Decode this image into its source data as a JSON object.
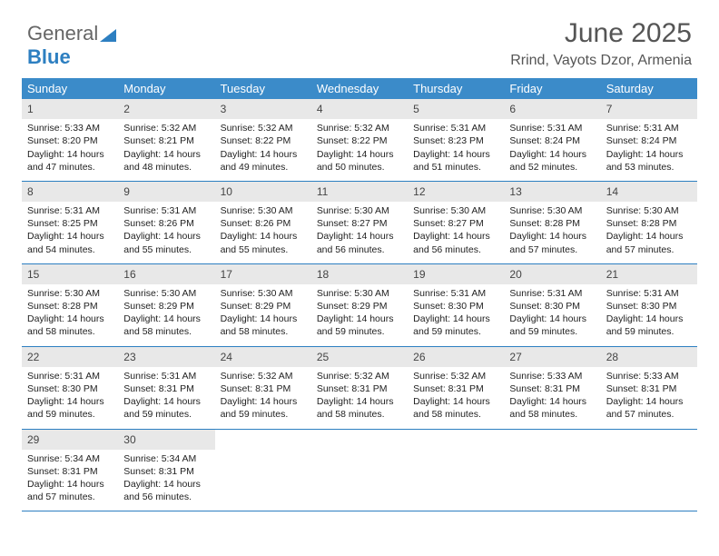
{
  "logo": {
    "text1": "General",
    "text2": "Blue"
  },
  "header": {
    "title": "June 2025",
    "subtitle": "Rrind, Vayots Dzor, Armenia"
  },
  "colors": {
    "header_bg": "#3b8bc9",
    "daynum_bg": "#e8e8e8",
    "border": "#2d7fc1",
    "text": "#222222",
    "muted": "#555555"
  },
  "calendar": {
    "days_of_week": [
      "Sunday",
      "Monday",
      "Tuesday",
      "Wednesday",
      "Thursday",
      "Friday",
      "Saturday"
    ],
    "weeks": [
      [
        {
          "n": "1",
          "sunrise": "5:33 AM",
          "sunset": "8:20 PM",
          "daylight": "14 hours and 47 minutes."
        },
        {
          "n": "2",
          "sunrise": "5:32 AM",
          "sunset": "8:21 PM",
          "daylight": "14 hours and 48 minutes."
        },
        {
          "n": "3",
          "sunrise": "5:32 AM",
          "sunset": "8:22 PM",
          "daylight": "14 hours and 49 minutes."
        },
        {
          "n": "4",
          "sunrise": "5:32 AM",
          "sunset": "8:22 PM",
          "daylight": "14 hours and 50 minutes."
        },
        {
          "n": "5",
          "sunrise": "5:31 AM",
          "sunset": "8:23 PM",
          "daylight": "14 hours and 51 minutes."
        },
        {
          "n": "6",
          "sunrise": "5:31 AM",
          "sunset": "8:24 PM",
          "daylight": "14 hours and 52 minutes."
        },
        {
          "n": "7",
          "sunrise": "5:31 AM",
          "sunset": "8:24 PM",
          "daylight": "14 hours and 53 minutes."
        }
      ],
      [
        {
          "n": "8",
          "sunrise": "5:31 AM",
          "sunset": "8:25 PM",
          "daylight": "14 hours and 54 minutes."
        },
        {
          "n": "9",
          "sunrise": "5:31 AM",
          "sunset": "8:26 PM",
          "daylight": "14 hours and 55 minutes."
        },
        {
          "n": "10",
          "sunrise": "5:30 AM",
          "sunset": "8:26 PM",
          "daylight": "14 hours and 55 minutes."
        },
        {
          "n": "11",
          "sunrise": "5:30 AM",
          "sunset": "8:27 PM",
          "daylight": "14 hours and 56 minutes."
        },
        {
          "n": "12",
          "sunrise": "5:30 AM",
          "sunset": "8:27 PM",
          "daylight": "14 hours and 56 minutes."
        },
        {
          "n": "13",
          "sunrise": "5:30 AM",
          "sunset": "8:28 PM",
          "daylight": "14 hours and 57 minutes."
        },
        {
          "n": "14",
          "sunrise": "5:30 AM",
          "sunset": "8:28 PM",
          "daylight": "14 hours and 57 minutes."
        }
      ],
      [
        {
          "n": "15",
          "sunrise": "5:30 AM",
          "sunset": "8:28 PM",
          "daylight": "14 hours and 58 minutes."
        },
        {
          "n": "16",
          "sunrise": "5:30 AM",
          "sunset": "8:29 PM",
          "daylight": "14 hours and 58 minutes."
        },
        {
          "n": "17",
          "sunrise": "5:30 AM",
          "sunset": "8:29 PM",
          "daylight": "14 hours and 58 minutes."
        },
        {
          "n": "18",
          "sunrise": "5:30 AM",
          "sunset": "8:29 PM",
          "daylight": "14 hours and 59 minutes."
        },
        {
          "n": "19",
          "sunrise": "5:31 AM",
          "sunset": "8:30 PM",
          "daylight": "14 hours and 59 minutes."
        },
        {
          "n": "20",
          "sunrise": "5:31 AM",
          "sunset": "8:30 PM",
          "daylight": "14 hours and 59 minutes."
        },
        {
          "n": "21",
          "sunrise": "5:31 AM",
          "sunset": "8:30 PM",
          "daylight": "14 hours and 59 minutes."
        }
      ],
      [
        {
          "n": "22",
          "sunrise": "5:31 AM",
          "sunset": "8:30 PM",
          "daylight": "14 hours and 59 minutes."
        },
        {
          "n": "23",
          "sunrise": "5:31 AM",
          "sunset": "8:31 PM",
          "daylight": "14 hours and 59 minutes."
        },
        {
          "n": "24",
          "sunrise": "5:32 AM",
          "sunset": "8:31 PM",
          "daylight": "14 hours and 59 minutes."
        },
        {
          "n": "25",
          "sunrise": "5:32 AM",
          "sunset": "8:31 PM",
          "daylight": "14 hours and 58 minutes."
        },
        {
          "n": "26",
          "sunrise": "5:32 AM",
          "sunset": "8:31 PM",
          "daylight": "14 hours and 58 minutes."
        },
        {
          "n": "27",
          "sunrise": "5:33 AM",
          "sunset": "8:31 PM",
          "daylight": "14 hours and 58 minutes."
        },
        {
          "n": "28",
          "sunrise": "5:33 AM",
          "sunset": "8:31 PM",
          "daylight": "14 hours and 57 minutes."
        }
      ],
      [
        {
          "n": "29",
          "sunrise": "5:34 AM",
          "sunset": "8:31 PM",
          "daylight": "14 hours and 57 minutes."
        },
        {
          "n": "30",
          "sunrise": "5:34 AM",
          "sunset": "8:31 PM",
          "daylight": "14 hours and 56 minutes."
        },
        null,
        null,
        null,
        null,
        null
      ]
    ],
    "labels": {
      "sunrise": "Sunrise:",
      "sunset": "Sunset:",
      "daylight": "Daylight:"
    }
  }
}
